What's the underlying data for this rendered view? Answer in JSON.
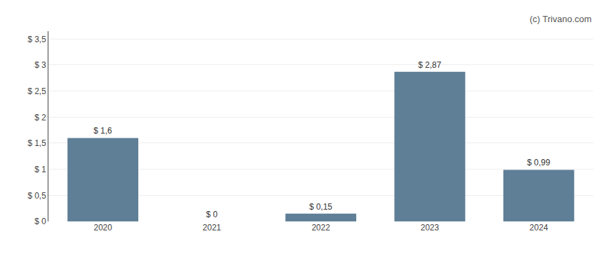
{
  "chart_data": {
    "type": "bar",
    "categories": [
      "2020",
      "2021",
      "2022",
      "2023",
      "2024"
    ],
    "values": [
      1.6,
      0.0,
      0.15,
      2.87,
      0.99
    ],
    "value_labels": [
      "$ 1,6",
      "$ 0",
      "$ 0,15",
      "$ 2,87",
      "$ 0,99"
    ],
    "data_labels": true,
    "color": "#5f7f96",
    "ylim": [
      0,
      3.65
    ],
    "yticks": [
      {
        "value": 0,
        "label": "$ 0"
      },
      {
        "value": 0.5,
        "label": "$ 0,5"
      },
      {
        "value": 1.0,
        "label": "$ 1"
      },
      {
        "value": 1.5,
        "label": "$ 1,5"
      },
      {
        "value": 2.0,
        "label": "$ 2"
      },
      {
        "value": 2.5,
        "label": "$ 2,5"
      },
      {
        "value": 3.0,
        "label": "$ 3"
      },
      {
        "value": 3.5,
        "label": "$ 3,5"
      }
    ],
    "grid": true,
    "annotations": [
      "(c) Trivano.com"
    ]
  }
}
